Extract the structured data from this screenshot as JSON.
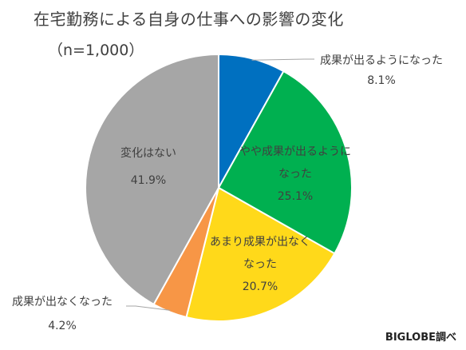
{
  "chart_data": {
    "type": "pie",
    "title": "在宅勤務による自身の仕事への影響の変化",
    "subtitle": "（n=1,000）",
    "slices": [
      {
        "label_lines": [
          "成果が出るようになった"
        ],
        "value_label": "8.1%",
        "value": 8.1,
        "color": "#0070C0"
      },
      {
        "label_lines": [
          "やや成果が出るように",
          "なった"
        ],
        "value_label": "25.1%",
        "value": 25.1,
        "color": "#00B050"
      },
      {
        "label_lines": [
          "あまり成果が出なく",
          "なった"
        ],
        "value_label": "20.7%",
        "value": 20.7,
        "color": "#FFD91A"
      },
      {
        "label_lines": [
          "成果が出なくなった"
        ],
        "value_label": "4.2%",
        "value": 4.2,
        "color": "#F79646"
      },
      {
        "label_lines": [
          "変化はない"
        ],
        "value_label": "41.9%",
        "value": 41.9,
        "color": "#A6A6A6"
      }
    ],
    "start": "12 o'clock",
    "direction": "clockwise",
    "legend": "none"
  },
  "source_credit": "BIGLOBE調べ"
}
